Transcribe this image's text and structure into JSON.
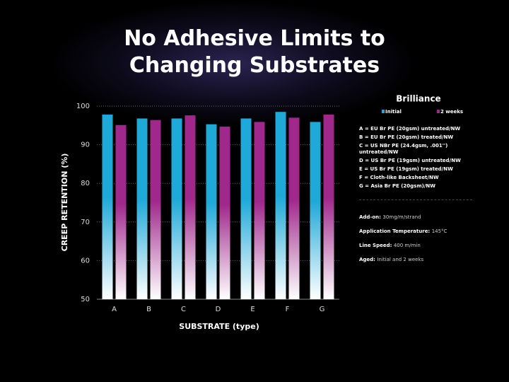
{
  "chart_data": {
    "type": "bar",
    "title": "No Adhesive Limits to Changing Substrates",
    "xlabel": "SUBSTRATE (type)",
    "ylabel": "CREEP RETENTION (%)",
    "legend_title": "Brilliance",
    "categories": [
      "A",
      "B",
      "C",
      "D",
      "E",
      "F",
      "G"
    ],
    "series": [
      {
        "name": "Initial",
        "color": "#1fa9d8",
        "values": [
          97.8,
          96.8,
          96.8,
          95.3,
          96.8,
          98.5,
          95.9
        ]
      },
      {
        "name": "2 weeks",
        "color": "#a0278c",
        "values": [
          95.1,
          96.4,
          97.6,
          94.7,
          95.9,
          97.0,
          97.8
        ]
      }
    ],
    "ylim": [
      50,
      100
    ],
    "yticks": [
      50,
      60,
      70,
      80,
      90,
      100
    ],
    "grid": true,
    "substrates": [
      "A = EU Br PE (20gsm) untreated/NW",
      "B = EU Br PE (20gsm) treated/NW",
      "C = US NBr PE (24.4gsm, .001'') untreated/NW",
      "D = US Br PE (19gsm) untreated/NW",
      "E = US Br PE (19gsm) treated/NW",
      "F = Cloth-like Backsheet/NW",
      "G = Asia Br PE (20gsm)/NW"
    ],
    "conditions": [
      {
        "label": "Add-on:",
        "value": "30mg/m/strand"
      },
      {
        "label": "Application Temperature:",
        "value": "145°C"
      },
      {
        "label": "Line Speed:",
        "value": "400 m/min"
      },
      {
        "label": "Aged:",
        "value": "Initial and 2 weeks"
      }
    ]
  }
}
